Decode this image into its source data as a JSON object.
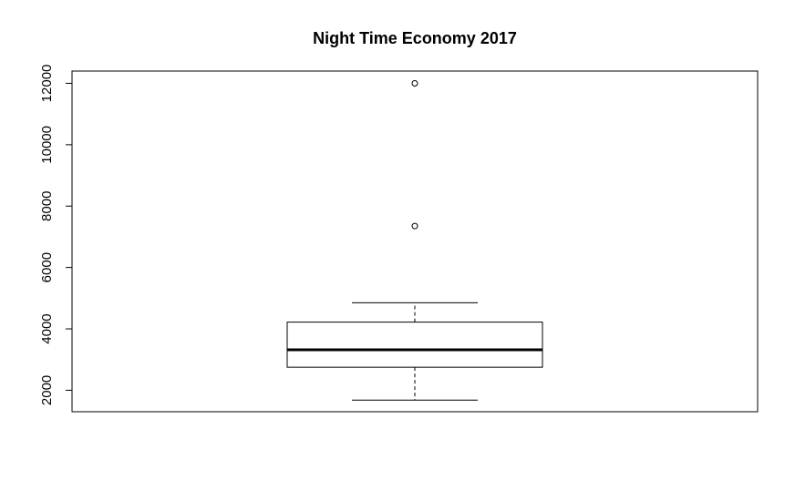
{
  "chart_data": {
    "type": "boxplot",
    "title": "Night Time Economy 2017",
    "xlabel": "",
    "ylabel": "",
    "ylim": [
      1300,
      12400
    ],
    "yticks": [
      2000,
      4000,
      6000,
      8000,
      10000,
      12000
    ],
    "ytick_labels": [
      "2000",
      "4000",
      "6000",
      "8000",
      "10000",
      "12000"
    ],
    "box": {
      "whisker_low": 1680,
      "q1": 2750,
      "median": 3320,
      "q3": 4220,
      "whisker_high": 4850
    },
    "outliers": [
      7350,
      12000
    ],
    "grid": false,
    "legend": "none",
    "colors": {
      "stroke": "#000000",
      "background": "#ffffff"
    }
  }
}
